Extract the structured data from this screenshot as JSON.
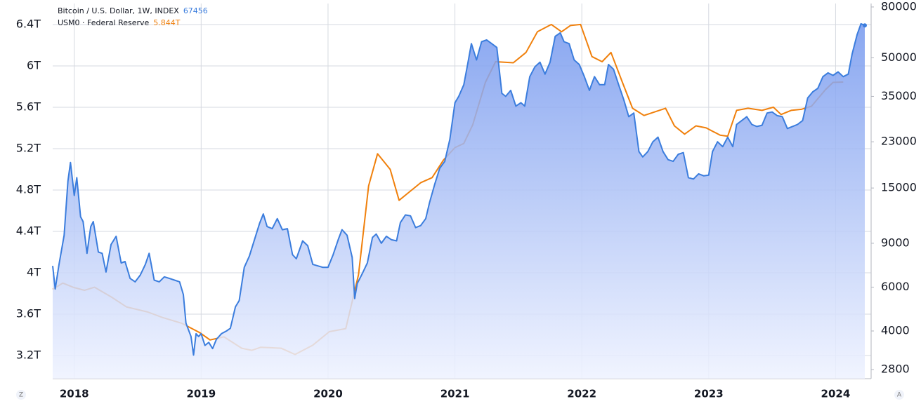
{
  "chart_data": {
    "type": "line",
    "series": [
      {
        "name": "Bitcoin / U.S. Dollar, 1W, INDEX",
        "color": "#3b7ddd",
        "axis": "y2",
        "area": true,
        "x": [
          2017.83,
          2017.85,
          2017.88,
          2017.92,
          2017.95,
          2017.97,
          2018.0,
          2018.02,
          2018.05,
          2018.07,
          2018.1,
          2018.13,
          2018.15,
          2018.19,
          2018.22,
          2018.25,
          2018.29,
          2018.33,
          2018.37,
          2018.4,
          2018.44,
          2018.48,
          2018.52,
          2018.56,
          2018.59,
          2018.63,
          2018.67,
          2018.71,
          2018.75,
          2018.79,
          2018.83,
          2018.86,
          2018.88,
          2018.92,
          2018.94,
          2018.96,
          2018.98,
          2019.0,
          2019.03,
          2019.06,
          2019.09,
          2019.12,
          2019.16,
          2019.2,
          2019.23,
          2019.27,
          2019.3,
          2019.34,
          2019.38,
          2019.42,
          2019.46,
          2019.49,
          2019.52,
          2019.56,
          2019.6,
          2019.64,
          2019.68,
          2019.72,
          2019.75,
          2019.8,
          2019.84,
          2019.88,
          2019.92,
          2019.96,
          2020.0,
          2020.04,
          2020.08,
          2020.11,
          2020.15,
          2020.19,
          2020.21,
          2020.23,
          2020.27,
          2020.31,
          2020.35,
          2020.38,
          2020.42,
          2020.46,
          2020.5,
          2020.54,
          2020.57,
          2020.61,
          2020.65,
          2020.69,
          2020.73,
          2020.77,
          2020.8,
          2020.84,
          2020.88,
          2020.92,
          2020.96,
          2021.0,
          2021.03,
          2021.07,
          2021.1,
          2021.13,
          2021.17,
          2021.21,
          2021.25,
          2021.29,
          2021.33,
          2021.37,
          2021.4,
          2021.44,
          2021.48,
          2021.52,
          2021.55,
          2021.59,
          2021.63,
          2021.67,
          2021.71,
          2021.75,
          2021.79,
          2021.83,
          2021.86,
          2021.9,
          2021.94,
          2021.98,
          2022.02,
          2022.06,
          2022.1,
          2022.14,
          2022.18,
          2022.21,
          2022.25,
          2022.29,
          2022.33,
          2022.37,
          2022.41,
          2022.45,
          2022.48,
          2022.52,
          2022.56,
          2022.6,
          2022.64,
          2022.68,
          2022.72,
          2022.76,
          2022.8,
          2022.84,
          2022.88,
          2022.92,
          2022.96,
          2023.0,
          2023.03,
          2023.07,
          2023.11,
          2023.15,
          2023.19,
          2023.22,
          2023.26,
          2023.3,
          2023.34,
          2023.38,
          2023.42,
          2023.46,
          2023.5,
          2023.54,
          2023.58,
          2023.62,
          2023.66,
          2023.7,
          2023.74,
          2023.78,
          2023.82,
          2023.86,
          2023.9,
          2023.94,
          2023.98,
          2024.02,
          2024.06,
          2024.1,
          2024.13,
          2024.17,
          2024.2,
          2024.23
        ],
        "values": [
          7300,
          5900,
          7400,
          9700,
          16000,
          19000,
          14000,
          16500,
          11500,
          11000,
          8200,
          10500,
          11000,
          8300,
          8200,
          6900,
          8900,
          9600,
          7500,
          7600,
          6500,
          6300,
          6700,
          7400,
          8200,
          6400,
          6300,
          6600,
          6500,
          6400,
          6300,
          5600,
          4300,
          3800,
          3200,
          3900,
          3800,
          3900,
          3500,
          3600,
          3400,
          3700,
          3900,
          4000,
          4100,
          5000,
          5300,
          7200,
          8000,
          9300,
          10800,
          11800,
          10500,
          10300,
          11300,
          10200,
          10300,
          8100,
          7800,
          9200,
          8800,
          7400,
          7300,
          7200,
          7200,
          8100,
          9300,
          10200,
          9700,
          7900,
          5400,
          6200,
          6800,
          7500,
          9500,
          9800,
          9000,
          9600,
          9300,
          9200,
          10900,
          11700,
          11600,
          10400,
          10600,
          11300,
          13100,
          15500,
          18000,
          19200,
          23500,
          33000,
          35000,
          39000,
          47000,
          57000,
          49000,
          58000,
          59000,
          57000,
          55000,
          36000,
          35000,
          37000,
          32000,
          33000,
          32000,
          42000,
          46000,
          48000,
          43000,
          48000,
          61000,
          63000,
          58000,
          57000,
          49000,
          47000,
          42000,
          37000,
          42000,
          39000,
          39000,
          47000,
          45000,
          39000,
          34000,
          29000,
          30000,
          21000,
          20000,
          21000,
          23000,
          24000,
          21000,
          19500,
          19200,
          20500,
          20800,
          16500,
          16300,
          17100,
          16800,
          16900,
          21000,
          23000,
          22000,
          24000,
          22000,
          27000,
          28000,
          29000,
          27000,
          26500,
          26800,
          30000,
          30300,
          29300,
          29000,
          26000,
          26500,
          27000,
          28000,
          34500,
          36500,
          37700,
          42000,
          43500,
          42500,
          43900,
          42000,
          43000,
          51700,
          62000,
          68500,
          67456
        ]
      },
      {
        "name": "USM0 · Federal Reserve",
        "color": "#f0800c",
        "axis": "y",
        "x": [
          2017.83,
          2017.91,
          2017.99,
          2018.08,
          2018.16,
          2018.3,
          2018.41,
          2018.58,
          2018.69,
          2018.85,
          2018.99,
          2019.07,
          2019.18,
          2019.32,
          2019.4,
          2019.47,
          2019.63,
          2019.74,
          2019.88,
          2020.01,
          2020.14,
          2020.24,
          2020.32,
          2020.39,
          2020.49,
          2020.56,
          2020.63,
          2020.73,
          2020.82,
          2020.91,
          2021.0,
          2021.07,
          2021.14,
          2021.24,
          2021.32,
          2021.46,
          2021.56,
          2021.65,
          2021.76,
          2021.84,
          2021.91,
          2021.99,
          2022.08,
          2022.16,
          2022.23,
          2022.32,
          2022.4,
          2022.49,
          2022.66,
          2022.73,
          2022.81,
          2022.9,
          2022.98,
          2023.09,
          2023.15,
          2023.22,
          2023.31,
          2023.42,
          2023.51,
          2023.57,
          2023.65,
          2023.73,
          2023.81,
          2023.92,
          2023.98,
          2024.06
        ],
        "values": [
          3.84,
          3.9,
          3.86,
          3.83,
          3.86,
          3.76,
          3.67,
          3.62,
          3.57,
          3.51,
          3.42,
          3.35,
          3.38,
          3.27,
          3.25,
          3.28,
          3.27,
          3.21,
          3.3,
          3.43,
          3.46,
          3.98,
          4.84,
          5.15,
          5.0,
          4.7,
          4.77,
          4.87,
          4.92,
          5.09,
          5.21,
          5.25,
          5.43,
          5.84,
          6.04,
          6.03,
          6.13,
          6.33,
          6.4,
          6.33,
          6.39,
          6.4,
          6.09,
          6.04,
          6.13,
          5.84,
          5.59,
          5.52,
          5.59,
          5.42,
          5.34,
          5.42,
          5.4,
          5.33,
          5.32,
          5.57,
          5.59,
          5.57,
          5.6,
          5.53,
          5.57,
          5.58,
          5.61,
          5.77,
          5.84,
          5.844
        ],
        "value_labels": [
          null,
          null,
          null,
          null,
          null,
          null,
          null,
          null,
          null,
          null,
          null,
          null,
          null,
          null,
          null,
          null,
          null,
          null,
          null,
          null,
          null,
          null,
          null,
          null,
          null,
          null,
          null,
          null,
          null,
          null,
          null,
          null,
          null,
          null,
          null,
          null,
          null,
          null,
          null,
          null,
          null,
          null,
          null,
          null,
          null,
          null,
          null,
          null,
          null,
          null,
          null,
          null,
          null,
          null,
          null,
          null,
          null,
          null,
          null,
          null,
          null,
          null,
          null,
          null,
          null,
          "5.844T"
        ]
      }
    ],
    "xlim": [
      2017.83,
      2024.28
    ],
    "xticks": [
      2018,
      2019,
      2020,
      2021,
      2022,
      2023,
      2024
    ],
    "ylim": [
      2.976,
      6.603
    ],
    "yticks": [
      {
        "value": 3.2,
        "label": "3.2T"
      },
      {
        "value": 3.6,
        "label": "3.6T"
      },
      {
        "value": 4,
        "label": "4T"
      },
      {
        "value": 4.4,
        "label": "4.4T"
      },
      {
        "value": 4.8,
        "label": "4.8T"
      },
      {
        "value": 5.2,
        "label": "5.2T"
      },
      {
        "value": 5.6,
        "label": "5.6T"
      },
      {
        "value": 6,
        "label": "6T"
      },
      {
        "value": 6.4,
        "label": "6.4T"
      }
    ],
    "y2lim": [
      2574,
      82600
    ],
    "y2scale": "log",
    "y2ticks": [
      2800,
      4000,
      6000,
      9000,
      15000,
      23000,
      35000,
      50000,
      80000
    ],
    "grid": true
  },
  "corner_buttons": [
    "Z",
    "A"
  ]
}
